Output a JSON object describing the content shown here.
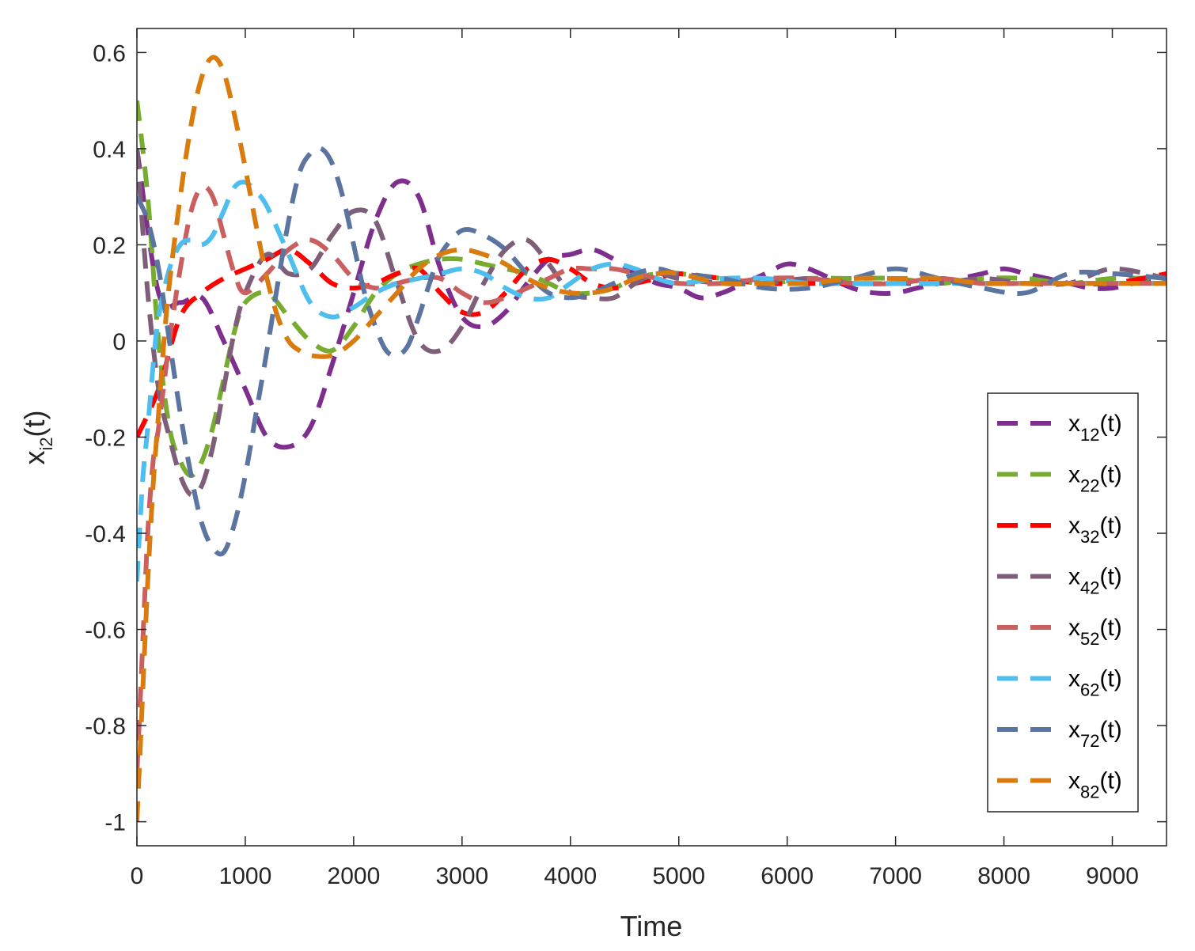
{
  "chart_data": {
    "type": "line",
    "title": "",
    "xlabel": "Time",
    "ylabel": {
      "main": "x",
      "sub": "i2",
      "suffix": "(t)"
    },
    "xlim": [
      0,
      9500
    ],
    "ylim": [
      -1.05,
      0.65
    ],
    "xticks": [
      0,
      1000,
      2000,
      3000,
      4000,
      5000,
      6000,
      7000,
      8000,
      9000
    ],
    "xtick_labels": [
      "0",
      "1000",
      "2000",
      "3000",
      "4000",
      "5000",
      "6000",
      "7000",
      "8000",
      "9000"
    ],
    "yticks": [
      -1,
      -0.8,
      -0.6,
      -0.4,
      -0.2,
      0,
      0.2,
      0.4,
      0.6
    ],
    "ytick_labels": [
      "-1",
      "-0.8",
      "-0.6",
      "-0.4",
      "-0.2",
      "0",
      "0.2",
      "0.4",
      "0.6"
    ],
    "line_style": "dashed",
    "grid": false,
    "legend_position": "lower-right",
    "series": [
      {
        "name": "x12(t)",
        "label_main": "x",
        "label_sub": "12",
        "label_suffix": "(t)",
        "color": "#7E2F8E",
        "x": [
          0,
          200,
          400,
          600,
          800,
          1000,
          1200,
          1400,
          1600,
          1800,
          2000,
          2200,
          2400,
          2600,
          2800,
          3000,
          3200,
          3400,
          3600,
          3800,
          4000,
          4200,
          4400,
          4600,
          4800,
          5000,
          5200,
          5400,
          5600,
          5800,
          6000,
          6200,
          6400,
          6600,
          6800,
          7000,
          7200,
          7400,
          7600,
          7800,
          8000,
          8200,
          8400,
          8600,
          8800,
          9000,
          9200,
          9500
        ],
        "y": [
          0.4,
          0.1,
          0.08,
          0.09,
          0.0,
          -0.1,
          -0.2,
          -0.22,
          -0.18,
          -0.05,
          0.1,
          0.25,
          0.33,
          0.3,
          0.15,
          0.05,
          0.03,
          0.06,
          0.12,
          0.17,
          0.18,
          0.19,
          0.17,
          0.14,
          0.12,
          0.11,
          0.09,
          0.1,
          0.12,
          0.14,
          0.16,
          0.15,
          0.13,
          0.11,
          0.1,
          0.1,
          0.11,
          0.12,
          0.13,
          0.14,
          0.15,
          0.14,
          0.13,
          0.12,
          0.11,
          0.11,
          0.12,
          0.13
        ]
      },
      {
        "name": "x22(t)",
        "label_main": "x",
        "label_sub": "22",
        "label_suffix": "(t)",
        "color": "#77AC30",
        "x": [
          0,
          100,
          200,
          300,
          400,
          500,
          600,
          700,
          800,
          900,
          1000,
          1200,
          1400,
          1600,
          1800,
          2000,
          2200,
          2400,
          2600,
          2800,
          3000,
          3200,
          3400,
          3600,
          3800,
          4000,
          4200,
          4400,
          4600,
          4800,
          5000,
          5400,
          5800,
          6200,
          6600,
          7000,
          7400,
          7800,
          8200,
          8600,
          9000,
          9500
        ],
        "y": [
          0.5,
          0.3,
          0.0,
          -0.18,
          -0.25,
          -0.28,
          -0.25,
          -0.18,
          -0.08,
          0.02,
          0.08,
          0.1,
          0.05,
          0.0,
          -0.02,
          0.03,
          0.1,
          0.14,
          0.16,
          0.17,
          0.17,
          0.16,
          0.15,
          0.14,
          0.12,
          0.1,
          0.1,
          0.11,
          0.13,
          0.14,
          0.14,
          0.13,
          0.12,
          0.13,
          0.13,
          0.13,
          0.12,
          0.13,
          0.13,
          0.12,
          0.13,
          0.13
        ]
      },
      {
        "name": "x32(t)",
        "label_main": "x",
        "label_sub": "32",
        "label_suffix": "(t)",
        "color": "#FF0000",
        "x": [
          0,
          200,
          400,
          600,
          800,
          1000,
          1200,
          1400,
          1600,
          1800,
          2000,
          2200,
          2400,
          2600,
          2800,
          3000,
          3200,
          3400,
          3600,
          3800,
          4000,
          4200,
          4400,
          4600,
          4800,
          5000,
          5400,
          5800,
          6200,
          6600,
          7000,
          7400,
          7800,
          8200,
          8600,
          9000,
          9500
        ],
        "y": [
          -0.2,
          -0.1,
          0.05,
          0.1,
          0.13,
          0.15,
          0.17,
          0.19,
          0.16,
          0.12,
          0.11,
          0.12,
          0.14,
          0.15,
          0.1,
          0.06,
          0.06,
          0.1,
          0.15,
          0.17,
          0.15,
          0.12,
          0.11,
          0.12,
          0.13,
          0.14,
          0.13,
          0.12,
          0.12,
          0.12,
          0.12,
          0.13,
          0.12,
          0.12,
          0.12,
          0.12,
          0.14
        ]
      },
      {
        "name": "x42(t)",
        "label_main": "x",
        "label_sub": "42",
        "label_suffix": "(t)",
        "color": "#7E5E78",
        "x": [
          0,
          100,
          200,
          300,
          400,
          500,
          600,
          700,
          800,
          900,
          1000,
          1200,
          1400,
          1600,
          1800,
          2000,
          2200,
          2400,
          2600,
          2800,
          3000,
          3200,
          3400,
          3600,
          3800,
          4000,
          4200,
          4400,
          4600,
          4800,
          5000,
          5400,
          5800,
          6200,
          6600,
          7000,
          7400,
          7800,
          8200,
          8600,
          9000,
          9500
        ],
        "y": [
          0.4,
          0.1,
          -0.1,
          -0.2,
          -0.28,
          -0.32,
          -0.3,
          -0.22,
          -0.1,
          0.02,
          0.1,
          0.18,
          0.14,
          0.15,
          0.22,
          0.27,
          0.25,
          0.12,
          0.0,
          -0.02,
          0.03,
          0.12,
          0.19,
          0.21,
          0.16,
          0.1,
          0.09,
          0.09,
          0.12,
          0.14,
          0.13,
          0.12,
          0.12,
          0.13,
          0.12,
          0.12,
          0.12,
          0.13,
          0.12,
          0.12,
          0.15,
          0.13
        ]
      },
      {
        "name": "x52(t)",
        "label_main": "x",
        "label_sub": "52",
        "label_suffix": "(t)",
        "color": "#C9605F",
        "x": [
          0,
          50,
          100,
          150,
          200,
          300,
          400,
          500,
          600,
          700,
          800,
          900,
          1000,
          1200,
          1400,
          1600,
          1800,
          2000,
          2200,
          2400,
          2600,
          2800,
          3000,
          3200,
          3400,
          3600,
          3800,
          4000,
          4200,
          4400,
          4600,
          4800,
          5000,
          5400,
          5800,
          6200,
          6600,
          7000,
          7400,
          7800,
          8200,
          8600,
          9000,
          9500
        ],
        "y": [
          -0.9,
          -0.65,
          -0.4,
          -0.25,
          -0.18,
          0.0,
          0.15,
          0.27,
          0.32,
          0.3,
          0.22,
          0.14,
          0.1,
          0.14,
          0.19,
          0.21,
          0.18,
          0.13,
          0.11,
          0.12,
          0.13,
          0.13,
          0.1,
          0.08,
          0.09,
          0.11,
          0.13,
          0.15,
          0.15,
          0.15,
          0.14,
          0.13,
          0.12,
          0.12,
          0.13,
          0.13,
          0.12,
          0.12,
          0.13,
          0.12,
          0.12,
          0.12,
          0.12,
          0.12
        ]
      },
      {
        "name": "x62(t)",
        "label_main": "x",
        "label_sub": "62",
        "label_suffix": "(t)",
        "color": "#4DBEEE",
        "x": [
          0,
          50,
          100,
          150,
          200,
          300,
          400,
          500,
          600,
          700,
          800,
          900,
          1000,
          1100,
          1200,
          1400,
          1600,
          1800,
          2000,
          2200,
          2400,
          2600,
          2800,
          3000,
          3200,
          3400,
          3600,
          3800,
          4000,
          4200,
          4400,
          4600,
          4800,
          5000,
          5400,
          5800,
          6200,
          6600,
          7000,
          7400,
          7800,
          8200,
          8600,
          9000,
          9500
        ],
        "y": [
          -0.5,
          -0.3,
          -0.18,
          -0.05,
          0.05,
          0.15,
          0.2,
          0.21,
          0.2,
          0.22,
          0.27,
          0.32,
          0.33,
          0.31,
          0.28,
          0.18,
          0.08,
          0.05,
          0.07,
          0.1,
          0.12,
          0.13,
          0.14,
          0.15,
          0.14,
          0.11,
          0.09,
          0.09,
          0.12,
          0.15,
          0.16,
          0.15,
          0.13,
          0.12,
          0.13,
          0.13,
          0.12,
          0.12,
          0.12,
          0.12,
          0.12,
          0.12,
          0.12,
          0.12,
          0.12
        ]
      },
      {
        "name": "x72(t)",
        "label_main": "x",
        "label_sub": "72",
        "label_suffix": "(t)",
        "color": "#5B74A0",
        "x": [
          0,
          100,
          200,
          300,
          400,
          500,
          600,
          700,
          800,
          900,
          1000,
          1100,
          1200,
          1300,
          1400,
          1500,
          1600,
          1700,
          1800,
          1900,
          2000,
          2100,
          2200,
          2300,
          2400,
          2500,
          2600,
          2700,
          2800,
          3000,
          3200,
          3400,
          3600,
          3800,
          4000,
          4200,
          4400,
          4600,
          4800,
          5000,
          5400,
          5800,
          6200,
          6600,
          7000,
          7400,
          7800,
          8200,
          8600,
          9000,
          9500
        ],
        "y": [
          0.3,
          0.25,
          0.15,
          0.0,
          -0.15,
          -0.28,
          -0.38,
          -0.43,
          -0.44,
          -0.38,
          -0.28,
          -0.15,
          -0.02,
          0.12,
          0.25,
          0.35,
          0.39,
          0.4,
          0.37,
          0.3,
          0.2,
          0.1,
          0.03,
          -0.02,
          -0.03,
          -0.01,
          0.05,
          0.12,
          0.18,
          0.23,
          0.22,
          0.19,
          0.14,
          0.1,
          0.09,
          0.1,
          0.12,
          0.14,
          0.15,
          0.14,
          0.13,
          0.11,
          0.11,
          0.13,
          0.15,
          0.13,
          0.11,
          0.1,
          0.14,
          0.14,
          0.13
        ]
      },
      {
        "name": "x82(t)",
        "label_main": "x",
        "label_sub": "82",
        "label_suffix": "(t)",
        "color": "#D97B0E",
        "x": [
          0,
          50,
          100,
          150,
          200,
          250,
          300,
          400,
          500,
          600,
          700,
          800,
          900,
          1000,
          1100,
          1200,
          1300,
          1400,
          1500,
          1600,
          1800,
          2000,
          2200,
          2400,
          2600,
          2800,
          3000,
          3200,
          3400,
          3600,
          3800,
          4000,
          4200,
          4400,
          4600,
          4800,
          5000,
          5400,
          5800,
          6200,
          6600,
          7000,
          7400,
          7800,
          8200,
          8600,
          9000,
          9500
        ],
        "y": [
          -1.0,
          -0.75,
          -0.5,
          -0.3,
          -0.15,
          0.0,
          0.12,
          0.3,
          0.45,
          0.55,
          0.59,
          0.56,
          0.47,
          0.36,
          0.24,
          0.13,
          0.05,
          0.0,
          -0.02,
          -0.03,
          -0.03,
          0.0,
          0.05,
          0.1,
          0.15,
          0.18,
          0.19,
          0.18,
          0.16,
          0.13,
          0.11,
          0.1,
          0.1,
          0.11,
          0.13,
          0.14,
          0.14,
          0.12,
          0.12,
          0.12,
          0.13,
          0.13,
          0.13,
          0.12,
          0.12,
          0.12,
          0.12,
          0.12
        ]
      }
    ]
  }
}
